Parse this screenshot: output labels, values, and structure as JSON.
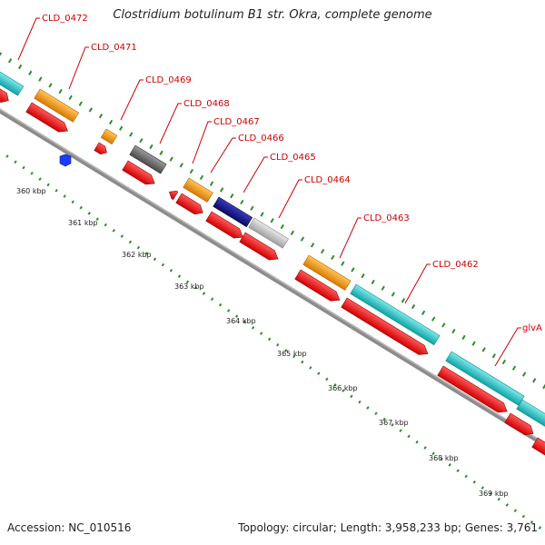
{
  "title": "Clostridium botulinum B1 str. Okra, complete genome",
  "footer": {
    "accession_label": "Accession:",
    "accession": "NC_010516",
    "topology_label": "Topology:",
    "topology": "circular",
    "length_label": "Length:",
    "length": "3,958,233 bp",
    "genes_label": "Genes:",
    "genes": "3,761"
  },
  "colors": {
    "label": "#cc0000",
    "backbone": "#8c8c8c",
    "tick": "#2e8b2e",
    "cds": "#ff1010",
    "cyan": "#20c8cc",
    "orange": "#ff9a00",
    "dark_gray": "#6a6a6a",
    "navy": "#14148a",
    "light_gray": "#c8c8c8",
    "blue": "#1a3cff"
  },
  "features": [
    {
      "label": "CLD_0472",
      "cog_color": "cyan"
    },
    {
      "label": "CLD_0471",
      "cog_color": "orange"
    },
    {
      "label": "CLD_0469",
      "cog_color": "orange"
    },
    {
      "label": "CLD_0468",
      "cog_color": "dark_gray"
    },
    {
      "label": "CLD_0467",
      "cog_color": "orange"
    },
    {
      "label": "CLD_0466",
      "cog_color": "navy"
    },
    {
      "label": "CLD_0465",
      "cog_color": "light_gray"
    },
    {
      "label": "CLD_0464",
      "cog_color": "light_gray"
    },
    {
      "label": "CLD_0463",
      "cog_color": "orange"
    },
    {
      "label": "CLD_0462",
      "cog_color": "cyan"
    },
    {
      "label": "glvA",
      "cog_color": "cyan"
    }
  ],
  "ruler": [
    "360 kbp",
    "361 kbp",
    "362 kbp",
    "363 kbp",
    "364 kbp",
    "365 kbp",
    "366 kbp",
    "367 kbp",
    "368 kbp",
    "369 kbp"
  ]
}
